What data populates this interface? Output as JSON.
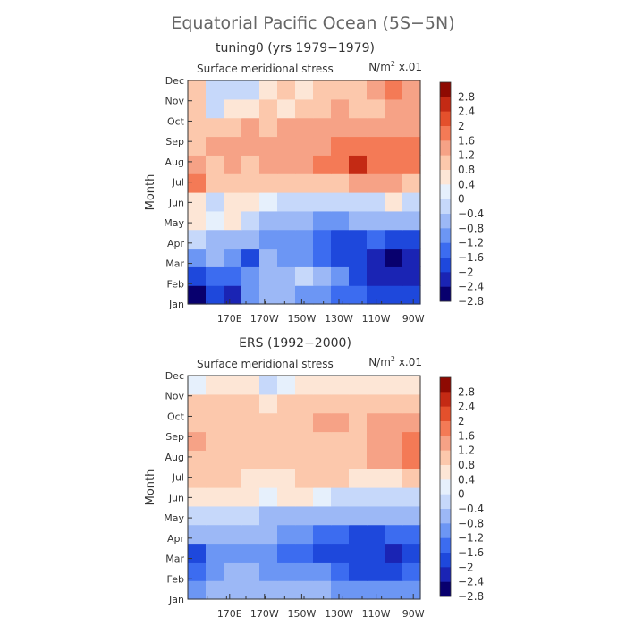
{
  "figure": {
    "title": "Equatorial Pacific Ocean (5S−5N)"
  },
  "chart_data": [
    {
      "type": "heatmap",
      "subtitle": "tuning0 (yrs 1979−1979)",
      "variable": "Surface meridional stress",
      "units_prefix": "N/m",
      "units_sup": "2",
      "units_suffix": " x.01",
      "ylabel": "Month",
      "xlabel": "",
      "y_categories": [
        "Jan",
        "Feb",
        "Mar",
        "Apr",
        "May",
        "Jun",
        "Jul",
        "Aug",
        "Sep",
        "Oct",
        "Nov",
        "Dec"
      ],
      "x_ticks": [
        "170E",
        "170W",
        "150W",
        "130W",
        "110W",
        "90W"
      ],
      "x_columns": [
        "150E",
        "160E",
        "170E",
        "180",
        "170W",
        "160W",
        "150W",
        "140W",
        "130W",
        "120W",
        "110W",
        "100W",
        "90W"
      ],
      "colorbar_ticks": [
        "2.8",
        "2.4",
        "2",
        "1.6",
        "1.2",
        "0.8",
        "0.4",
        "0",
        "−0.4",
        "−0.8",
        "−1.2",
        "−1.6",
        "−2",
        "−2.4",
        "−2.8"
      ],
      "values": [
        [
          -2.6,
          -2.0,
          -2.2,
          -1.4,
          -1.0,
          -1.0,
          -1.2,
          -1.2,
          -1.6,
          -1.6,
          -1.8,
          -1.8,
          -1.8
        ],
        [
          -1.8,
          -1.6,
          -1.6,
          -1.2,
          -0.8,
          -0.8,
          -0.2,
          -1.0,
          -1.4,
          -1.8,
          -2.2,
          -2.4,
          -2.2
        ],
        [
          -1.4,
          -1.0,
          -1.2,
          -1.8,
          -1.0,
          -1.2,
          -1.4,
          -1.6,
          -1.8,
          -1.9,
          -2.2,
          -2.6,
          -2.4
        ],
        [
          -0.4,
          -0.6,
          -0.8,
          -1.0,
          -1.2,
          -1.2,
          -1.4,
          -1.6,
          -1.8,
          -1.8,
          -1.7,
          -1.8,
          -1.8
        ],
        [
          0.2,
          0.0,
          0.2,
          -0.2,
          -0.6,
          -0.8,
          -1.0,
          -1.2,
          -1.2,
          -1.0,
          -1.0,
          -0.8,
          -0.6
        ],
        [
          0.4,
          -0.2,
          0.2,
          0.2,
          0.0,
          -0.4,
          -0.4,
          -0.2,
          -0.4,
          -0.4,
          -0.2,
          0.2,
          -0.4
        ],
        [
          1.4,
          0.8,
          0.8,
          0.8,
          0.8,
          0.6,
          0.6,
          0.8,
          0.8,
          1.0,
          1.2,
          1.2,
          0.6
        ],
        [
          1.0,
          0.8,
          1.0,
          0.8,
          1.0,
          1.0,
          1.2,
          1.4,
          1.6,
          2.2,
          1.8,
          1.4,
          1.8
        ],
        [
          0.8,
          1.0,
          1.0,
          1.2,
          1.2,
          1.0,
          1.2,
          1.2,
          1.6,
          1.8,
          1.8,
          1.6,
          1.4
        ],
        [
          0.8,
          0.8,
          0.8,
          1.0,
          0.8,
          1.0,
          1.0,
          1.2,
          1.2,
          1.2,
          1.2,
          1.2,
          1.0
        ],
        [
          0.8,
          -0.2,
          0.4,
          0.4,
          0.8,
          0.4,
          0.8,
          0.8,
          1.0,
          0.8,
          0.8,
          1.0,
          1.2
        ],
        [
          0.6,
          -0.4,
          -0.2,
          -0.2,
          0.2,
          0.6,
          0.4,
          0.6,
          0.8,
          0.6,
          1.0,
          1.4,
          1.0
        ]
      ]
    },
    {
      "type": "heatmap",
      "subtitle": "ERS (1992−2000)",
      "variable": "Surface meridional stress",
      "units_prefix": "N/m",
      "units_sup": "2",
      "units_suffix": " x.01",
      "ylabel": "Month",
      "xlabel": "",
      "y_categories": [
        "Jan",
        "Feb",
        "Mar",
        "Apr",
        "May",
        "Jun",
        "Jul",
        "Aug",
        "Sep",
        "Oct",
        "Nov",
        "Dec"
      ],
      "x_ticks": [
        "170E",
        "170W",
        "150W",
        "130W",
        "110W",
        "90W"
      ],
      "x_columns": [
        "150E",
        "160E",
        "170E",
        "180",
        "170W",
        "160W",
        "150W",
        "140W",
        "130W",
        "120W",
        "110W",
        "100W",
        "90W"
      ],
      "colorbar_ticks": [
        "2.8",
        "2.4",
        "2",
        "1.6",
        "1.2",
        "0.8",
        "0.4",
        "0",
        "−0.4",
        "−0.8",
        "−1.2",
        "−1.6",
        "−2",
        "−2.4",
        "−2.8"
      ],
      "values": [
        [
          -1.2,
          -0.8,
          -0.8,
          -0.8,
          -0.6,
          -0.8,
          -1.0,
          -1.0,
          -1.2,
          -1.2,
          -1.4,
          -1.4,
          -1.2
        ],
        [
          -1.6,
          -1.2,
          -1.0,
          -1.0,
          -1.2,
          -1.2,
          -1.4,
          -1.4,
          -1.6,
          -1.8,
          -1.8,
          -1.8,
          -1.6
        ],
        [
          -1.8,
          -1.2,
          -1.4,
          -1.4,
          -1.4,
          -1.6,
          -1.6,
          -1.8,
          -2.0,
          -2.0,
          -2.0,
          -2.2,
          -2.0
        ],
        [
          -0.8,
          -0.8,
          -1.0,
          -1.0,
          -1.0,
          -1.2,
          -1.4,
          -1.6,
          -1.6,
          -1.8,
          -1.8,
          -1.6,
          -1.6
        ],
        [
          -0.4,
          -0.4,
          -0.4,
          -0.4,
          -0.6,
          -0.6,
          -0.6,
          -0.8,
          -0.8,
          -1.0,
          -1.0,
          -1.0,
          -1.0
        ],
        [
          0.2,
          0.2,
          0.2,
          0.2,
          0.0,
          0.2,
          0.2,
          0.0,
          -0.2,
          -0.2,
          -0.4,
          -0.4,
          -0.4
        ],
        [
          0.6,
          0.6,
          0.6,
          0.4,
          0.4,
          0.4,
          0.6,
          0.6,
          0.6,
          0.4,
          0.4,
          0.4,
          0.6
        ],
        [
          0.8,
          0.8,
          0.8,
          0.8,
          0.6,
          0.8,
          0.8,
          0.8,
          0.8,
          0.8,
          1.0,
          1.2,
          1.4
        ],
        [
          1.2,
          0.8,
          0.8,
          0.8,
          0.8,
          0.8,
          0.8,
          0.8,
          0.8,
          0.8,
          1.0,
          1.2,
          1.4
        ],
        [
          0.6,
          0.8,
          0.8,
          0.8,
          0.8,
          0.8,
          0.8,
          1.0,
          1.0,
          0.8,
          1.0,
          1.0,
          1.2
        ],
        [
          0.6,
          0.6,
          0.6,
          0.6,
          0.4,
          0.6,
          0.6,
          0.8,
          0.8,
          0.8,
          0.8,
          0.8,
          0.8
        ],
        [
          0.0,
          0.2,
          0.2,
          0.2,
          -0.2,
          0.0,
          0.2,
          0.4,
          0.4,
          0.4,
          0.4,
          0.4,
          0.4
        ]
      ]
    }
  ],
  "colors": {
    "palette": [
      "#08006e",
      "#1a24b4",
      "#1e48dc",
      "#3c6cf0",
      "#6c96f4",
      "#9cb8f6",
      "#c6d8fa",
      "#e6f0fc",
      "#fde6d6",
      "#fcc8ac",
      "#f6a286",
      "#f47a56",
      "#e4502c",
      "#c42a14",
      "#8e0a02"
    ],
    "axis": "#333333",
    "title": "#666666"
  }
}
